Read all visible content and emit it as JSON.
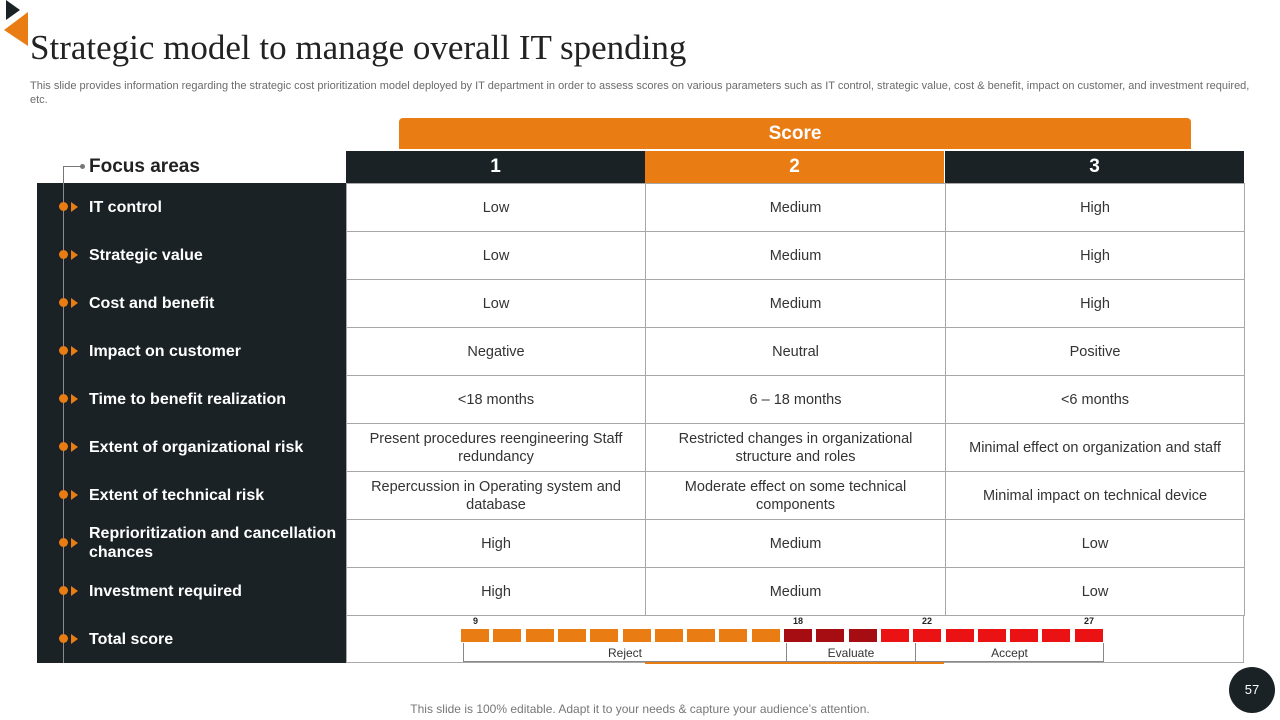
{
  "title": "Strategic model to manage overall IT spending",
  "subtitle": "This slide provides information regarding the strategic cost prioritization model deployed by IT department in order to assess scores on various parameters such as IT control, strategic value, cost & benefit, impact on customer, and investment required, etc.",
  "score_header": "Score",
  "focus_header": "Focus areas",
  "columns": [
    "1",
    "2",
    "3"
  ],
  "rows": [
    {
      "label": "IT control",
      "cells": [
        "Low",
        "Medium",
        "High"
      ]
    },
    {
      "label": "Strategic value",
      "cells": [
        "Low",
        "Medium",
        "High"
      ]
    },
    {
      "label": "Cost and benefit",
      "cells": [
        "Low",
        "Medium",
        "High"
      ]
    },
    {
      "label": "Impact on customer",
      "cells": [
        "Negative",
        "Neutral",
        "Positive"
      ]
    },
    {
      "label": "Time to benefit realization",
      "cells": [
        "<18 months",
        "6 – 18 months",
        "<6 months"
      ]
    },
    {
      "label": "Extent of organizational risk",
      "cells": [
        "Present procedures reengineering Staff redundancy",
        "Restricted changes in organizational structure and roles",
        "Minimal effect on organization and staff"
      ]
    },
    {
      "label": "Extent of technical risk",
      "cells": [
        "Repercussion in Operating system and database",
        "Moderate effect on some technical components",
        "Minimal impact on technical device"
      ]
    },
    {
      "label": "Reprioritization and cancellation chances",
      "cells": [
        "High",
        "Medium",
        "Low"
      ]
    },
    {
      "label": "Investment required",
      "cells": [
        "High",
        "Medium",
        "Low"
      ]
    }
  ],
  "total_score": {
    "label": "Total score",
    "ticks": [
      "9",
      "18",
      "22",
      "27"
    ],
    "bands": [
      {
        "label": "Reject",
        "color": "#ea7c14"
      },
      {
        "label": "Evaluate",
        "color": "#a50d12"
      },
      {
        "label": "Accept",
        "color": "#ea1212"
      }
    ]
  },
  "footer": "This slide is 100% editable. Adapt it to your needs & capture your audience’s attention.",
  "page_number": "57",
  "colors": {
    "accent": "#ea7c14",
    "dark": "#1b2226",
    "evaluate": "#a50d12",
    "accept": "#ea1212"
  }
}
